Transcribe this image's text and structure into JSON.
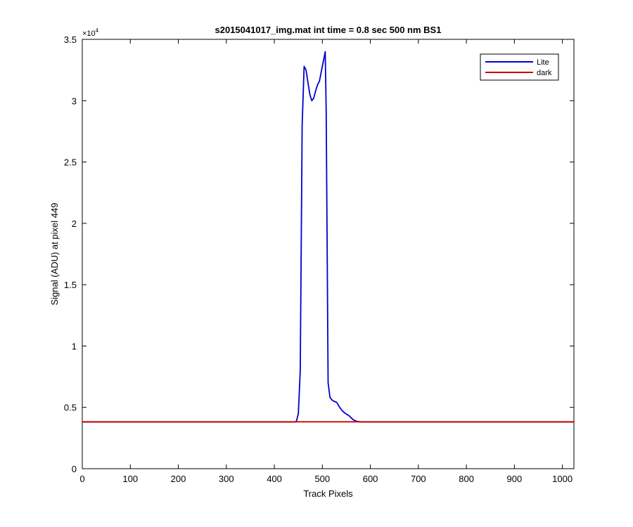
{
  "chart_data": {
    "type": "line",
    "title": "s2015041017_img.mat int time = 0.8 sec  500 nm BS1",
    "xlabel": "Track Pixels",
    "ylabel": "Signal (ADU) at pixel 449",
    "y_multiplier_base": "×10",
    "y_multiplier_exp": "4",
    "xlim": [
      0,
      1024
    ],
    "ylim": [
      0,
      35000
    ],
    "xticks": [
      0,
      100,
      200,
      300,
      400,
      500,
      600,
      700,
      800,
      900,
      1000
    ],
    "xtick_labels": [
      "0",
      "100",
      "200",
      "300",
      "400",
      "500",
      "600",
      "700",
      "800",
      "900",
      "1000"
    ],
    "yticks": [
      0,
      5000,
      10000,
      15000,
      20000,
      25000,
      30000,
      35000
    ],
    "ytick_labels": [
      "0",
      "0.5",
      "1",
      "1.5",
      "2",
      "2.5",
      "3",
      "3.5"
    ],
    "grid": false,
    "legend_position": "top-right",
    "series": [
      {
        "name": "Lite",
        "color": "#0000cc",
        "x": [
          0,
          100,
          200,
          300,
          400,
          440,
          446,
          450,
          454,
          458,
          462,
          466,
          470,
          474,
          478,
          482,
          486,
          490,
          494,
          498,
          502,
          506,
          508,
          512,
          516,
          520,
          524,
          530,
          536,
          542,
          548,
          556,
          564,
          572,
          580,
          590,
          620,
          700,
          800,
          900,
          1024
        ],
        "y": [
          3810,
          3810,
          3810,
          3810,
          3810,
          3810,
          3850,
          4500,
          8000,
          28000,
          32800,
          32500,
          31500,
          30500,
          30000,
          30200,
          30800,
          31300,
          31600,
          32400,
          33200,
          34000,
          29000,
          7000,
          5800,
          5600,
          5500,
          5400,
          5000,
          4700,
          4500,
          4300,
          4000,
          3850,
          3820,
          3810,
          3810,
          3810,
          3810,
          3810,
          3810
        ]
      },
      {
        "name": "dark",
        "color": "#cc0000",
        "x": [
          0,
          1024
        ],
        "y": [
          3820,
          3820
        ]
      }
    ]
  }
}
